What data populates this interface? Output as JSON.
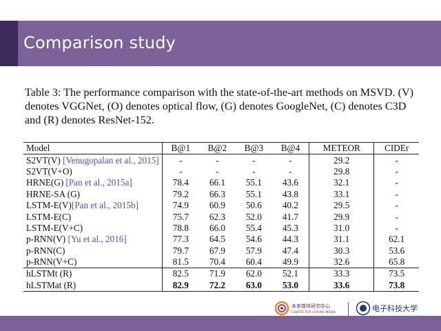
{
  "slide": {
    "title": "Comparison study"
  },
  "caption": "Table 3: The performance comparison with the state-of-the-art methods on MSVD. (V) denotes VGGNet, (O) denotes optical flow, (G) denotes GoogleNet, (C) denotes C3D and (R) denotes ResNet-152.",
  "table": {
    "headers": [
      "Model",
      "B@1",
      "B@2",
      "B@3",
      "B@4",
      "METEOR",
      "CIDEr"
    ],
    "rows": [
      {
        "model": "S2VT(V) ",
        "cite": "[Venugopalan et al., 2015]",
        "b1": "-",
        "b2": "-",
        "b3": "-",
        "b4": "-",
        "meteor": "29.2",
        "cider": "-"
      },
      {
        "model": "S2VT(V+O)",
        "cite": "",
        "b1": "-",
        "b2": "-",
        "b3": "-",
        "b4": "-",
        "meteor": "29.8",
        "cider": "-"
      },
      {
        "model": "HRNE(G) ",
        "cite": "[Pan et al., 2015a]",
        "b1": "78.4",
        "b2": "66.1",
        "b3": "55.1",
        "b4": "43.6",
        "meteor": "32.1",
        "cider": "-"
      },
      {
        "model": "HRNE-SA (G)",
        "cite": "",
        "b1": "79.2",
        "b2": "66.3",
        "b3": "55.1",
        "b4": "43.8",
        "meteor": "33.1",
        "cider": "-"
      },
      {
        "model": "LSTM-E(V)",
        "cite": "[Pan et al., 2015b]",
        "b1": "74.9",
        "b2": "60.9",
        "b3": "50.6",
        "b4": "40.2",
        "meteor": "29.5",
        "cider": "-"
      },
      {
        "model": "LSTM-E(C)",
        "cite": "",
        "b1": "75.7",
        "b2": "62.3",
        "b3": "52.0",
        "b4": "41.7",
        "meteor": "29.9",
        "cider": "-"
      },
      {
        "model": "LSTM-E(V+C)",
        "cite": "",
        "b1": "78.8",
        "b2": "66.0",
        "b3": "55.4",
        "b4": "45.3",
        "meteor": "31.0",
        "cider": "-"
      },
      {
        "model": "p-RNN(V) ",
        "cite": "[Yu et al., 2016]",
        "b1": "77.3",
        "b2": "64.5",
        "b3": "54.6",
        "b4": "44.3",
        "meteor": "31.1",
        "cider": "62.1"
      },
      {
        "model": "p-RNN(C)",
        "cite": "",
        "b1": "79.7",
        "b2": "67.9",
        "b3": "57.9",
        "b4": "47.4",
        "meteor": "30.3",
        "cider": "53.6"
      },
      {
        "model": "p-RNN(V+C)",
        "cite": "",
        "b1": "81.5",
        "b2": "70.4",
        "b3": "60.4",
        "b4": "49.9",
        "meteor": "32.6",
        "cider": "65.8"
      },
      {
        "model": "hLSTMt (R)",
        "cite": "",
        "b1": "82.5",
        "b2": "71.9",
        "b3": "62.0",
        "b4": "52.1",
        "meteor": "33.3",
        "cider": "73.5"
      },
      {
        "model": "hLSTMat (R)",
        "cite": "",
        "b1": "82.9",
        "b2": "72.2",
        "b3": "63.0",
        "b4": "53.0",
        "meteor": "33.6",
        "cider": "73.8"
      }
    ]
  },
  "footer": {
    "logo1_cn": "未来媒体研究中心",
    "logo1_en": "CENTER FOR FUTURE MEDIA",
    "logo2_cn": "电子科技大学"
  },
  "colors": {
    "title_bar": "#7a6197",
    "accent": "#3b2a5a",
    "citation": "#4a56a8"
  }
}
